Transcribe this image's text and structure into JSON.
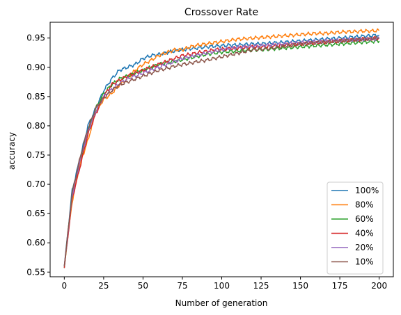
{
  "chart_data": {
    "type": "line",
    "title": "Crossover Rate",
    "xlabel": "Number of generation",
    "ylabel": "accuracy",
    "xlim": [
      -9,
      209
    ],
    "ylim": [
      0.542,
      0.977
    ],
    "xticks": [
      0,
      25,
      50,
      75,
      100,
      125,
      150,
      175,
      200
    ],
    "yticks": [
      0.55,
      0.6,
      0.65,
      0.7,
      0.75,
      0.8,
      0.85,
      0.9,
      0.95
    ],
    "xtick_labels": [
      "0",
      "25",
      "50",
      "75",
      "100",
      "125",
      "150",
      "175",
      "200"
    ],
    "ytick_labels": [
      "0.55",
      "0.60",
      "0.65",
      "0.70",
      "0.75",
      "0.80",
      "0.85",
      "0.90",
      "0.95"
    ],
    "grid": false,
    "legend_position": "bottom-right",
    "x": [
      0,
      5,
      10,
      15,
      20,
      25,
      30,
      35,
      40,
      45,
      50,
      55,
      60,
      65,
      70,
      75,
      80,
      85,
      90,
      95,
      100,
      105,
      110,
      115,
      120,
      125,
      130,
      135,
      140,
      145,
      150,
      155,
      160,
      165,
      170,
      175,
      180,
      185,
      190,
      195,
      200
    ],
    "series": [
      {
        "name": "100%",
        "color": "#1f77b4",
        "values": [
          0.56,
          0.69,
          0.745,
          0.8,
          0.83,
          0.86,
          0.88,
          0.895,
          0.9,
          0.905,
          0.915,
          0.92,
          0.922,
          0.925,
          0.928,
          0.93,
          0.932,
          0.933,
          0.935,
          0.936,
          0.937,
          0.938,
          0.938,
          0.939,
          0.94,
          0.94,
          0.941,
          0.942,
          0.943,
          0.944,
          0.945,
          0.946,
          0.947,
          0.948,
          0.949,
          0.95,
          0.951,
          0.952,
          0.953,
          0.954,
          0.955
        ]
      },
      {
        "name": "80%",
        "color": "#ff7f0e",
        "values": [
          0.56,
          0.67,
          0.735,
          0.775,
          0.825,
          0.845,
          0.855,
          0.87,
          0.88,
          0.895,
          0.905,
          0.912,
          0.92,
          0.925,
          0.93,
          0.93,
          0.935,
          0.938,
          0.94,
          0.942,
          0.944,
          0.946,
          0.948,
          0.949,
          0.95,
          0.951,
          0.952,
          0.953,
          0.954,
          0.955,
          0.956,
          0.957,
          0.958,
          0.958,
          0.959,
          0.96,
          0.961,
          0.961,
          0.962,
          0.962,
          0.963
        ]
      },
      {
        "name": "60%",
        "color": "#2ca02c",
        "values": [
          0.557,
          0.685,
          0.74,
          0.79,
          0.83,
          0.855,
          0.87,
          0.88,
          0.885,
          0.89,
          0.895,
          0.9,
          0.905,
          0.908,
          0.91,
          0.913,
          0.916,
          0.919,
          0.922,
          0.924,
          0.926,
          0.927,
          0.928,
          0.929,
          0.93,
          0.93,
          0.931,
          0.932,
          0.933,
          0.934,
          0.935,
          0.936,
          0.937,
          0.938,
          0.939,
          0.94,
          0.941,
          0.942,
          0.943,
          0.944,
          0.945
        ]
      },
      {
        "name": "40%",
        "color": "#d62728",
        "values": [
          0.557,
          0.675,
          0.73,
          0.785,
          0.82,
          0.85,
          0.87,
          0.878,
          0.885,
          0.89,
          0.895,
          0.9,
          0.905,
          0.91,
          0.915,
          0.92,
          0.922,
          0.925,
          0.927,
          0.93,
          0.931,
          0.932,
          0.933,
          0.934,
          0.935,
          0.935,
          0.936,
          0.937,
          0.938,
          0.939,
          0.94,
          0.941,
          0.942,
          0.943,
          0.944,
          0.945,
          0.946,
          0.947,
          0.948,
          0.949,
          0.95
        ]
      },
      {
        "name": "20%",
        "color": "#9467bd",
        "values": [
          0.56,
          0.68,
          0.74,
          0.79,
          0.825,
          0.85,
          0.862,
          0.872,
          0.88,
          0.885,
          0.89,
          0.895,
          0.9,
          0.905,
          0.91,
          0.915,
          0.918,
          0.921,
          0.924,
          0.927,
          0.93,
          0.932,
          0.934,
          0.935,
          0.936,
          0.937,
          0.938,
          0.939,
          0.94,
          0.941,
          0.942,
          0.943,
          0.944,
          0.945,
          0.946,
          0.946,
          0.947,
          0.947,
          0.948,
          0.948,
          0.949
        ]
      },
      {
        "name": "10%",
        "color": "#8c564b",
        "values": [
          0.56,
          0.685,
          0.745,
          0.795,
          0.83,
          0.848,
          0.86,
          0.87,
          0.875,
          0.88,
          0.885,
          0.89,
          0.895,
          0.898,
          0.902,
          0.905,
          0.907,
          0.91,
          0.912,
          0.915,
          0.918,
          0.921,
          0.924,
          0.927,
          0.93,
          0.931,
          0.932,
          0.934,
          0.936,
          0.938,
          0.94,
          0.941,
          0.942,
          0.943,
          0.944,
          0.945,
          0.946,
          0.947,
          0.948,
          0.949,
          0.95
        ]
      }
    ]
  }
}
